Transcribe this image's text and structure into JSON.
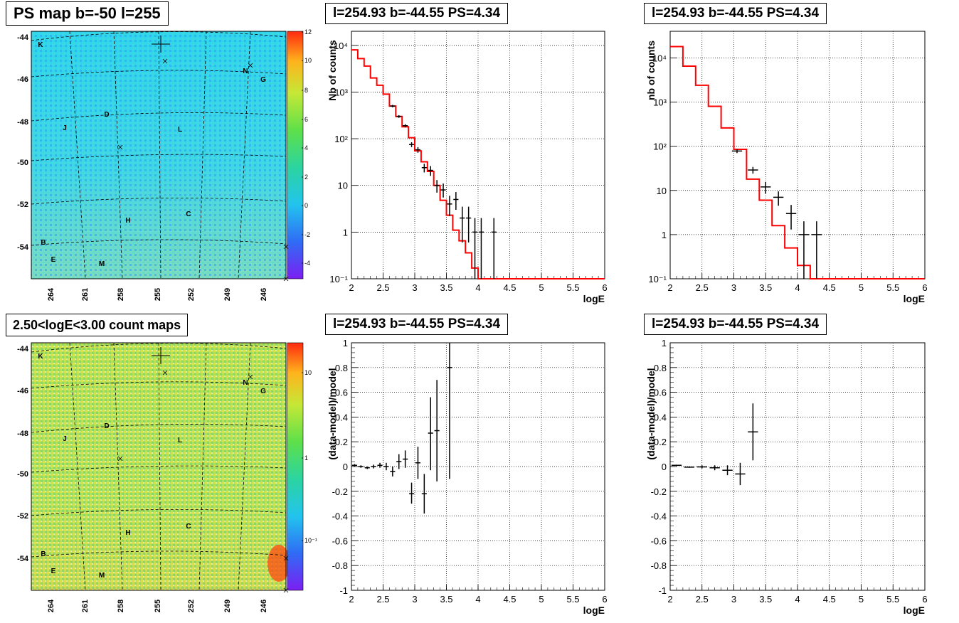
{
  "colors": {
    "map_bg_top": "#33ddee",
    "map_bg_bottom": "#a6e07a",
    "model_line": "#ff0000",
    "data_marks": "#000000"
  },
  "panels": {
    "ps_map": {
      "title": "PS map b=-50 l=255",
      "y_ticks": [
        "-44",
        "-46",
        "-48",
        "-50",
        "-52",
        "-54"
      ],
      "x_ticks": [
        "264",
        "261",
        "258",
        "255",
        "252",
        "249",
        "246"
      ],
      "colorbar_ticks": [
        "12",
        "10",
        "8",
        "6",
        "4",
        "2",
        "0",
        "-2",
        "-4"
      ],
      "source_labels": [
        "K",
        "N",
        "G",
        "D",
        "J",
        "L",
        "C",
        "H",
        "B",
        "E",
        "M"
      ]
    },
    "count_map": {
      "title": "2.50<logE<3.00 count maps",
      "y_ticks": [
        "-44",
        "-46",
        "-48",
        "-50",
        "-52",
        "-54"
      ],
      "x_ticks": [
        "264",
        "261",
        "258",
        "255",
        "252",
        "249",
        "246"
      ],
      "colorbar_ticks": [
        "10",
        "1",
        "10⁻¹"
      ],
      "source_labels": [
        "K",
        "N",
        "G",
        "D",
        "J",
        "L",
        "C",
        "H",
        "B",
        "E",
        "M"
      ]
    }
  },
  "chart_data": [
    {
      "type": "line",
      "title": "l=254.93 b=-44.55 PS=4.34",
      "xlabel": "logE",
      "ylabel": "Nb of counts",
      "xlim": [
        2,
        6
      ],
      "ylim": [
        0.1,
        20000
      ],
      "y_scale": "log",
      "grid": true,
      "x_ticks": [
        "2",
        "2.5",
        "3",
        "3.5",
        "4",
        "4.5",
        "5",
        "5.5",
        "6"
      ],
      "y_ticks": [
        "10⁴",
        "10³",
        "10²",
        "10",
        "1",
        "10⁻¹"
      ],
      "model_step": {
        "edges": [
          2.0,
          2.1,
          2.2,
          2.3,
          2.4,
          2.5,
          2.6,
          2.7,
          2.8,
          2.9,
          3.0,
          3.1,
          3.2,
          3.3,
          3.4,
          3.5,
          3.6,
          3.7,
          3.8,
          3.9,
          4.0,
          4.1,
          6.0
        ],
        "values": [
          8000,
          5200,
          3600,
          2000,
          1400,
          900,
          500,
          300,
          180,
          105,
          55,
          32,
          20,
          10,
          4.8,
          2.3,
          1.1,
          0.65,
          0.36,
          0.17,
          0.1,
          0.1
        ]
      },
      "data_points": [
        {
          "x": 2.65,
          "y": 500,
          "xerr": 0.04,
          "ylo": 470,
          "yhi": 530
        },
        {
          "x": 2.75,
          "y": 300,
          "xerr": 0.04,
          "ylo": 280,
          "yhi": 320
        },
        {
          "x": 2.85,
          "y": 190,
          "xerr": 0.04,
          "ylo": 175,
          "yhi": 205
        },
        {
          "x": 2.95,
          "y": 75,
          "xerr": 0.04,
          "ylo": 66,
          "yhi": 84
        },
        {
          "x": 3.05,
          "y": 58,
          "xerr": 0.04,
          "ylo": 50,
          "yhi": 66
        },
        {
          "x": 3.15,
          "y": 24,
          "xerr": 0.04,
          "ylo": 19,
          "yhi": 29
        },
        {
          "x": 3.25,
          "y": 21,
          "xerr": 0.04,
          "ylo": 16,
          "yhi": 26
        },
        {
          "x": 3.35,
          "y": 10,
          "xerr": 0.04,
          "ylo": 7,
          "yhi": 13
        },
        {
          "x": 3.45,
          "y": 8,
          "xerr": 0.04,
          "ylo": 5.5,
          "yhi": 11
        },
        {
          "x": 3.55,
          "y": 4,
          "xerr": 0.04,
          "ylo": 2.2,
          "yhi": 6
        },
        {
          "x": 3.65,
          "y": 5,
          "xerr": 0.04,
          "ylo": 3,
          "yhi": 7.2
        },
        {
          "x": 3.75,
          "y": 2,
          "xerr": 0.04,
          "ylo": 0.6,
          "yhi": 3.5
        },
        {
          "x": 3.85,
          "y": 2,
          "xerr": 0.04,
          "ylo": 0.6,
          "yhi": 3.5
        },
        {
          "x": 3.95,
          "y": 1,
          "xerr": 0.04,
          "ylo": 0.1,
          "yhi": 2
        },
        {
          "x": 4.05,
          "y": 1,
          "xerr": 0.04,
          "ylo": 0.1,
          "yhi": 2
        },
        {
          "x": 4.25,
          "y": 1,
          "xerr": 0.04,
          "ylo": 0.1,
          "yhi": 2
        }
      ]
    },
    {
      "type": "line",
      "title": "l=254.93 b=-44.55 PS=4.34",
      "xlabel": "logE",
      "ylabel": "nb of counts",
      "xlim": [
        2,
        6
      ],
      "ylim": [
        0.1,
        40000
      ],
      "y_scale": "log",
      "grid": true,
      "x_ticks": [
        "2",
        "2.5",
        "3",
        "3.5",
        "4",
        "4.5",
        "5",
        "5.5",
        "6"
      ],
      "y_ticks": [
        "10⁴",
        "10³",
        "10²",
        "10",
        "1",
        "10⁻¹"
      ],
      "model_step": {
        "edges": [
          2.0,
          2.2,
          2.4,
          2.6,
          2.8,
          3.0,
          3.2,
          3.4,
          3.6,
          3.8,
          4.0,
          4.2,
          6.0
        ],
        "values": [
          18000,
          6500,
          2400,
          800,
          260,
          85,
          18,
          6,
          1.6,
          0.5,
          0.2,
          0.1
        ]
      },
      "data_points": [
        {
          "x": 3.05,
          "y": 78,
          "xerr": 0.08,
          "ylo": 70,
          "yhi": 86
        },
        {
          "x": 3.3,
          "y": 29,
          "xerr": 0.08,
          "ylo": 24,
          "yhi": 34
        },
        {
          "x": 3.5,
          "y": 12,
          "xerr": 0.08,
          "ylo": 8.5,
          "yhi": 15.5
        },
        {
          "x": 3.7,
          "y": 7,
          "xerr": 0.08,
          "ylo": 4.5,
          "yhi": 9.5
        },
        {
          "x": 3.9,
          "y": 3,
          "xerr": 0.08,
          "ylo": 1.3,
          "yhi": 4.7
        },
        {
          "x": 4.1,
          "y": 1,
          "xerr": 0.08,
          "ylo": 0.1,
          "yhi": 2
        },
        {
          "x": 4.3,
          "y": 1,
          "xerr": 0.08,
          "ylo": 0.1,
          "yhi": 2
        }
      ]
    },
    {
      "type": "scatter",
      "title": "l=254.93 b=-44.55 PS=4.34",
      "xlabel": "logE",
      "ylabel": "(data-model)/model",
      "xlim": [
        2,
        6
      ],
      "ylim": [
        -1,
        1
      ],
      "grid": true,
      "x_ticks": [
        "2",
        "2.5",
        "3",
        "3.5",
        "4",
        "4.5",
        "5",
        "5.5",
        "6"
      ],
      "y_ticks": [
        "1",
        "0.8",
        "0.6",
        "0.4",
        "0.2",
        "0",
        "-0.2",
        "-0.4",
        "-0.6",
        "-0.8",
        "-1"
      ],
      "data_points": [
        {
          "x": 2.05,
          "y": 0.01,
          "xerr": 0.04,
          "ylo": 0.0,
          "yhi": 0.02
        },
        {
          "x": 2.15,
          "y": 0.0,
          "xerr": 0.04,
          "ylo": -0.01,
          "yhi": 0.01
        },
        {
          "x": 2.25,
          "y": -0.01,
          "xerr": 0.04,
          "ylo": -0.02,
          "yhi": 0.0
        },
        {
          "x": 2.35,
          "y": 0.0,
          "xerr": 0.04,
          "ylo": -0.015,
          "yhi": 0.015
        },
        {
          "x": 2.45,
          "y": 0.01,
          "xerr": 0.04,
          "ylo": -0.01,
          "yhi": 0.03
        },
        {
          "x": 2.55,
          "y": 0.0,
          "xerr": 0.04,
          "ylo": -0.03,
          "yhi": 0.03
        },
        {
          "x": 2.65,
          "y": -0.04,
          "xerr": 0.04,
          "ylo": -0.08,
          "yhi": 0.0
        },
        {
          "x": 2.75,
          "y": 0.04,
          "xerr": 0.04,
          "ylo": -0.02,
          "yhi": 0.1
        },
        {
          "x": 2.85,
          "y": 0.06,
          "xerr": 0.04,
          "ylo": -0.01,
          "yhi": 0.13
        },
        {
          "x": 2.95,
          "y": -0.22,
          "xerr": 0.04,
          "ylo": -0.3,
          "yhi": -0.13
        },
        {
          "x": 3.05,
          "y": 0.03,
          "xerr": 0.04,
          "ylo": -0.1,
          "yhi": 0.16
        },
        {
          "x": 3.15,
          "y": -0.22,
          "xerr": 0.04,
          "ylo": -0.38,
          "yhi": -0.06
        },
        {
          "x": 3.25,
          "y": 0.27,
          "xerr": 0.04,
          "ylo": -0.03,
          "yhi": 0.56
        },
        {
          "x": 3.35,
          "y": 0.29,
          "xerr": 0.04,
          "ylo": -0.12,
          "yhi": 0.7
        },
        {
          "x": 3.55,
          "y": 0.8,
          "xerr": 0.04,
          "ylo": -0.1,
          "yhi": 1.0
        }
      ]
    },
    {
      "type": "scatter",
      "title": "l=254.93 b=-44.55 PS=4.34",
      "xlabel": "logE",
      "ylabel": "(data-model)/model",
      "xlim": [
        2,
        6
      ],
      "ylim": [
        -1,
        1
      ],
      "grid": true,
      "x_ticks": [
        "2",
        "2.5",
        "3",
        "3.5",
        "4",
        "4.5",
        "5",
        "5.5",
        "6"
      ],
      "y_ticks": [
        "1",
        "0.8",
        "0.6",
        "0.4",
        "0.2",
        "0",
        "-0.2",
        "-0.4",
        "-0.6",
        "-0.8",
        "-1"
      ],
      "data_points": [
        {
          "x": 2.1,
          "y": 0.01,
          "xerr": 0.08,
          "ylo": 0.005,
          "yhi": 0.015
        },
        {
          "x": 2.3,
          "y": -0.005,
          "xerr": 0.08,
          "ylo": -0.01,
          "yhi": 0.0
        },
        {
          "x": 2.5,
          "y": -0.003,
          "xerr": 0.08,
          "ylo": -0.015,
          "yhi": 0.01
        },
        {
          "x": 2.7,
          "y": -0.01,
          "xerr": 0.08,
          "ylo": -0.03,
          "yhi": 0.01
        },
        {
          "x": 2.9,
          "y": -0.03,
          "xerr": 0.08,
          "ylo": -0.07,
          "yhi": 0.01
        },
        {
          "x": 3.1,
          "y": -0.06,
          "xerr": 0.08,
          "ylo": -0.15,
          "yhi": 0.03
        },
        {
          "x": 3.3,
          "y": 0.28,
          "xerr": 0.08,
          "ylo": 0.05,
          "yhi": 0.51
        }
      ]
    }
  ]
}
